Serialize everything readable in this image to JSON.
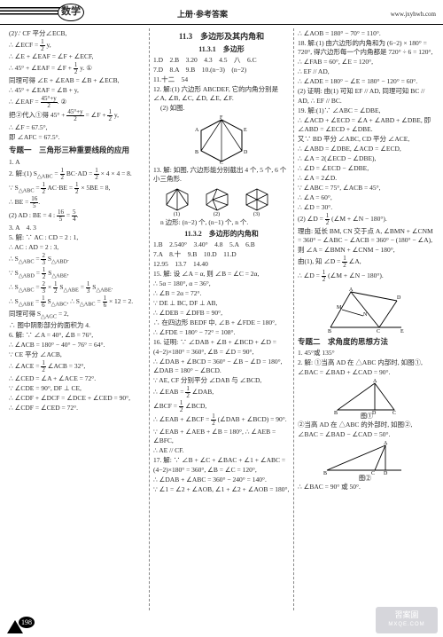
{
  "header": {
    "subject": "数学",
    "center": "上册·参考答案",
    "site": "www.jxyhwh.com"
  },
  "col1": {
    "lines": [
      "(2)∵ CF 平分∠ECB,",
      "∴ ∠ECF = <f>1|2</f> y,",
      "∴ ∠E + ∠EAF = ∠F + ∠ECF,",
      "∴ 45° + ∠EAF = ∠F + <f>1|2</f> y. ①",
      "同理可得 ∠E + ∠EAB = ∠B + ∠ECB,",
      "∴ 45° + ∠EAF = ∠B + y,",
      "∴ ∠EAF = <f>45°+y|2</f>. ②",
      "把②代入①得 45° + <f>45°+y|2</f> = ∠F + <f>1|2</f> y,",
      "∴ ∠F = 67.5°,",
      "即 ∠AFC = 67.5°."
    ],
    "topic": "专题一　三角形三种重要线段的应用",
    "rest": [
      "1. A",
      "2. 解:(1) S<sub>△ABC</sub> = <f>1|2</f> BC·AD = <f>1|2</f> × 4 × 4 = 8.",
      "∵ S<sub>△ABC</sub> = <f>1|2</f> AC·BE = <f>1|2</f> × 5BE = 8,",
      "∴ BE = <f>16|5</f>.",
      "(2) AD : BE = 4 : <f>16|5</f> = <f>5|4</f>.",
      "3. A　4. 3",
      "5. 解: ∵ AC : CD = 2 : 1,",
      "∴ AC : AD = 2 : 3,",
      "∴ S<sub>△ABC</sub> = <f>2|3</f> S<sub>△ABD</sub>.",
      "∵ S<sub>△ABD</sub> = <f>1|2</f> S<sub>△ABE</sub>,",
      "∴ S<sub>△ABC</sub> = <f>2|3</f> × <f>1|2</f> S<sub>△ABE</sub> = <f>1|3</f> S<sub>△ABE</sub>.",
      "∴ S<sub>△ABE</sub> = <f>1|6</f> S<sub>△ABC</sub>, ∴ S<sub>△ABC</sub> = <f>1|6</f> × 12 = 2.",
      "同理可得 S<sub>△AGC</sub> = 2,",
      "∴ 图中阴影部分的面积为 4.",
      "6. 解: ∵ ∠A = 40°, ∠B = 76°,",
      "∴ ∠ACB = 180° − 40° − 76° = 64°.",
      "∵ CE 平分 ∠ACB,",
      "∴ ∠ACE = <f>1|2</f> ∠ACB = 32°,",
      "∴ ∠CED = ∠A + ∠ACE = 72°.",
      "∵ ∠CDE = 90°, DF ⊥ CE,",
      "∴ ∠CDF + ∠DCF = ∠DCE + ∠CED = 90°,",
      "∴ ∠CDF = ∠CED = 72°."
    ]
  },
  "col2": {
    "title": "11.3　多边形及其内角和",
    "sub1": "11.3.1　多边形",
    "row1": "1.D　2.B　3.20　4.3　4.5　八　6.C",
    "row2": "7.D　8.A　9.B　10.(n−3)　(n−2)",
    "row3": "11.十二　54",
    "q12": "12. 解:(1) 六边形 ABCDEF, 它的内角分别是 ∠A, ∠B, ∠C, ∠D, ∠E, ∠F.",
    "q12b": "(2) 如图.",
    "q13": "13. 解: 如图, 六边形能分别截出 4 个, 5 个, 6 个小三角形.",
    "q13b": "n 边形: (n−2) 个, (n−1) 个, n 个.",
    "sub2": "11.3.2　多边形的内角和",
    "row4": "1.B　2.540°　3.40°　4.8　5.A　6.B",
    "row5": "7.A　8.十　9.B　10.D　11.D",
    "row6": "12.95　13.7　14.40",
    "q15": [
      "15. 解: 设 ∠A = α, 则 ∠B = ∠C = 2α,",
      "∴ 5α = 180°, α = 36°,",
      "∴ ∠B = 2α = 72°.",
      "∵ DE ⊥ BC, DF ⊥ AB,",
      "∴ ∠DEB = ∠DFB = 90°,",
      "∴ 在四边形 BEDF 中, ∠B + ∠FDE = 180°,",
      "∴ ∠FDE = 180° − 72° = 108°."
    ],
    "q16": [
      "16. 证明: ∵ ∠DAB + ∠B + ∠BCD + ∠D = (4−2)×180° = 360°, ∠B = ∠D = 90°,",
      "∴ ∠DAB + ∠BCD = 360° − ∠B − ∠D = 180°, ∠DAB = 180° − ∠BCD.",
      "∵ AE, CF 分别平分 ∠DAB 与 ∠BCD,",
      "∴ ∠EAB = <f>1|2</f> ∠DAB,",
      "∠BCF = <f>1|2</f> ∠BCD,",
      "∴ ∠EAB + ∠BCF = <f>1|2</f> (∠DAB + ∠BCD) = 90°.",
      "∵ ∠EAB + ∠AEB + ∠B = 180°, ∴ ∠AEB = ∠BFC,",
      "∴ AE // CF."
    ],
    "q17": [
      "17. 解: ∵ ∠B + ∠C + ∠BAC + ∠1 + ∠ABC = (4−2)×180° = 360°, ∠B = ∠C = 120°,",
      "∴ ∠DAB + ∠ABC = 360° − 240° = 140°.",
      "∵ ∠1 = ∠2 + ∠AOB, ∠1 + ∠2 + ∠AOB = 180°,"
    ]
  },
  "col3": {
    "lines1": [
      "∴ ∠AOB = 180° − 70° = 110°.",
      "18. 解:(1) 由六边形的内角和为 (6−2) × 180° = 720°, 得六边形每一个内角都是 720° ÷ 6 = 120°,",
      "∴ ∠FAB = 60°, ∠E = 120°,",
      "∴ EF // AD,",
      "∴ ∠ADE = 180° − ∠E = 180° − 120° = 60°.",
      "(2) 证明: 由(1) 可知 EF // AD, 同理可知 BC // AD, ∴ EF // BC.",
      "19. 解:(1)∵ ∠ABC = ∠DBE,",
      "∴ ∠ACD + ∠ECD = ∠A + ∠ABD + ∠DBE, 即 ∠ABD = ∠ECD + ∠DBE.",
      "又∵ BD 平分 ∠ABC, CD 平分 ∠ACE,",
      "∴ ∠ABD = ∠DBE, ∠ACD = ∠ECD,",
      "∴ ∠A = 2(∠ECD − ∠DBE),",
      "∴ ∠D = ∠ECD − ∠DBE,",
      "∴ ∠A = 2∠D.",
      "∵ ∠ABC = 75°, ∠ACB = 45°,",
      "∴ ∠A = 60°,",
      "∴ ∠D = 30°.",
      "(2) ∠D = <f>1|2</f> (∠M + ∠N − 180°).",
      "理由: 延长 BM, CN 交于点 A, ∠BMN + ∠CNM = 360° − ∠ABC − ∠ACB = 360° − (180° − ∠A),",
      "则 ∠A = ∠BMN + ∠CNM − 180°,",
      "由(1), 知 ∠D = <f>1|2</f> ∠A,",
      "∴ ∠D = <f>1|2</f> (∠M + ∠N − 180°)."
    ],
    "topic": "专题二　求角度的思想方法",
    "q1": "1. 45°或 135°",
    "q2a": "2. 解: ①当高 AD 在 △ABC 内部时, 如图①, ∠BAC = ∠BAD + ∠CAD = 90°.",
    "fig1": "图①",
    "q2b": "②当高 AD 在 △ABC 的外部时, 如图②, ∠BAC = ∠BAD − ∠CAD = 50°.",
    "fig2": "图②",
    "ans2": "∴ ∠BAC = 90° 或 50°."
  },
  "footer": {
    "page": "198"
  },
  "watermark": {
    "l1": "習案園",
    "l2": "MXQE.COM"
  }
}
